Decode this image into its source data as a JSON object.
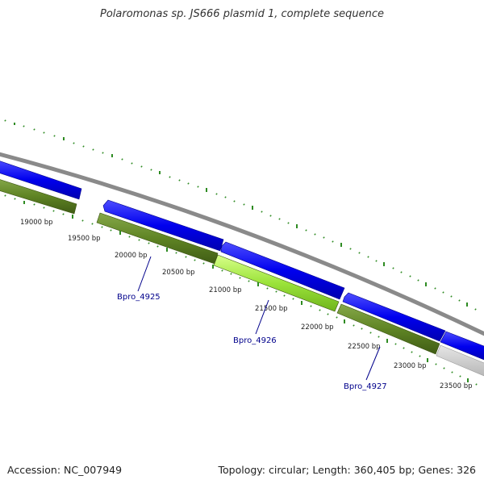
{
  "title": "Polaromonas sp. JS666 plasmid 1, complete sequence",
  "footer": {
    "accession": "Accession: NC_007949",
    "summary": "Topology: circular; Length: 360,405 bp; Genes: 326"
  },
  "colors": {
    "backbone": "#888888",
    "cds": "#0000ee",
    "gene": "#5a7a1f",
    "highlight": "#9be33a",
    "other": "#c8c8c8",
    "ticks": "#2e8b22",
    "label": "#00008b"
  },
  "scale": {
    "labels": [
      "19000 bp",
      "19500 bp",
      "20000 bp",
      "20500 bp",
      "21000 bp",
      "21500 bp",
      "22000 bp",
      "22500 bp",
      "23000 bp",
      "23500 bp"
    ]
  },
  "gene_labels": [
    "Bpro_4925",
    "Bpro_4926",
    "Bpro_4927"
  ]
}
